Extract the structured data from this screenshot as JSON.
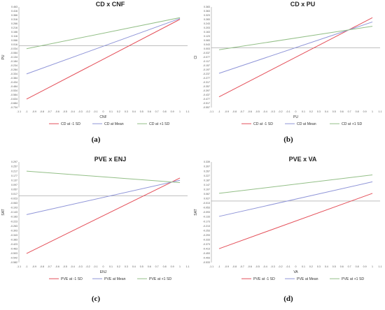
{
  "captions": [
    "(a)",
    "(b)",
    "(c)",
    "(d)"
  ],
  "colors": {
    "minus1sd": "#e4505a",
    "mean": "#8f95d8",
    "plus1sd": "#93bf87",
    "axis": "#999999"
  },
  "chart_data": [
    {
      "type": "line",
      "title": "CD x CNF",
      "xlabel": "CNF",
      "ylabel": "PU",
      "xlim": [
        -1.1,
        1.1
      ],
      "xticks": [
        "-1.1",
        "-1",
        "-0.9",
        "-0.8",
        "-0.7",
        "-0.6",
        "-0.5",
        "-0.4",
        "-0.3",
        "-0.2",
        "-0.1",
        "0",
        "0.1",
        "0.2",
        "0.3",
        "0.4",
        "0.5",
        "0.6",
        "0.7",
        "0.8",
        "0.9",
        "1",
        "1.1"
      ],
      "ylim": [
        -0.734,
        0.463
      ],
      "yticks": [
        "0.463",
        "0.416",
        "0.366",
        "0.316",
        "0.266",
        "0.216",
        "0.166",
        "0.116",
        "0.066",
        "0.016",
        "-0.034",
        "-0.084",
        "-0.134",
        "-0.184",
        "-0.234",
        "-0.284",
        "-0.334",
        "-0.384",
        "-0.434",
        "-0.484",
        "-0.534",
        "-0.584",
        "-0.634",
        "-0.684",
        "-0.734"
      ],
      "legend_position": "bottom",
      "series": [
        {
          "name": "CD at -1 SD",
          "x": [
            -1,
            1
          ],
          "y": [
            -0.634,
            0.316
          ]
        },
        {
          "name": "CD at Mean",
          "x": [
            -1,
            1
          ],
          "y": [
            -0.334,
            0.326
          ]
        },
        {
          "name": "CD at +1 SD",
          "x": [
            -1,
            1
          ],
          "y": [
            -0.034,
            0.336
          ]
        }
      ]
    },
    {
      "type": "line",
      "title": "CD x PU",
      "xlabel": "PU",
      "ylabel": "CI",
      "xlim": [
        -1.1,
        1.1
      ],
      "xticks": [
        "-1.1",
        "-1",
        "-0.9",
        "-0.8",
        "-0.7",
        "-0.6",
        "-0.5",
        "-0.4",
        "-0.3",
        "-0.2",
        "-0.1",
        "0",
        "0.1",
        "0.2",
        "0.3",
        "0.4",
        "0.5",
        "0.6",
        "0.7",
        "0.8",
        "0.9",
        "1",
        "1.1"
      ],
      "ylim": [
        -0.557,
        0.383
      ],
      "yticks": [
        "0.383",
        "0.363",
        "0.323",
        "0.283",
        "0.243",
        "0.203",
        "0.163",
        "0.123",
        "0.083",
        "0.043",
        "0.003",
        "-0.037",
        "-0.077",
        "-0.117",
        "-0.157",
        "-0.197",
        "-0.237",
        "-0.277",
        "-0.317",
        "-0.357",
        "-0.397",
        "-0.437",
        "-0.477",
        "-0.517",
        "-0.557"
      ],
      "legend_position": "bottom",
      "series": [
        {
          "name": "CD at -1 SD",
          "x": [
            -1,
            1
          ],
          "y": [
            -0.457,
            0.283
          ]
        },
        {
          "name": "CD at Mean",
          "x": [
            -1,
            1
          ],
          "y": [
            -0.237,
            0.243
          ]
        },
        {
          "name": "CD at +1 SD",
          "x": [
            -1,
            1
          ],
          "y": [
            -0.017,
            0.203
          ]
        }
      ]
    },
    {
      "type": "line",
      "title": "PVE x ENJ",
      "xlabel": "ENJ",
      "ylabel": "SAT",
      "xlim": [
        -1.1,
        1.1
      ],
      "xticks": [
        "-1.1",
        "-1",
        "-0.9",
        "-0.8",
        "-0.7",
        "-0.6",
        "-0.5",
        "-0.4",
        "-0.3",
        "-0.2",
        "-0.1",
        "0",
        "0.1",
        "0.2",
        "0.3",
        "0.4",
        "0.5",
        "0.6",
        "0.7",
        "0.8",
        "0.9",
        "1",
        "1.1"
      ],
      "ylim": [
        -0.582,
        0.297
      ],
      "yticks": [
        "0.297",
        "0.257",
        "0.217",
        "0.177",
        "0.137",
        "0.097",
        "0.057",
        "0.017",
        "-0.023",
        "-0.063",
        "-0.103",
        "-0.143",
        "-0.183",
        "-0.223",
        "-0.263",
        "-0.303",
        "-0.343",
        "-0.383",
        "-0.423",
        "-0.463",
        "-0.503",
        "-0.542",
        "-0.582"
      ],
      "legend_position": "bottom",
      "series": [
        {
          "name": "PVE at -1 SD",
          "x": [
            -1,
            1
          ],
          "y": [
            -0.503,
            0.157
          ]
        },
        {
          "name": "PVE at Mean",
          "x": [
            -1,
            1
          ],
          "y": [
            -0.163,
            0.137
          ]
        },
        {
          "name": "PVE at +1 SD",
          "x": [
            -1,
            1
          ],
          "y": [
            0.217,
            0.117
          ]
        }
      ]
    },
    {
      "type": "line",
      "title": "PVE x VA",
      "xlabel": "VA",
      "ylabel": "SAT",
      "xlim": [
        -1.1,
        1.1
      ],
      "xticks": [
        "-1.1",
        "-1",
        "-0.9",
        "-0.8",
        "-0.7",
        "-0.6",
        "-0.5",
        "-0.4",
        "-0.3",
        "-0.2",
        "-0.1",
        "0",
        "0.1",
        "0.2",
        "0.3",
        "0.4",
        "0.5",
        "0.6",
        "0.7",
        "0.8",
        "0.9",
        "1",
        "1.1"
      ],
      "ylim": [
        -0.533,
        0.339
      ],
      "yticks": [
        "0.339",
        "0.307",
        "0.267",
        "0.227",
        "0.187",
        "0.147",
        "0.107",
        "0.067",
        "0.027",
        "-0.013",
        "-0.053",
        "-0.093",
        "-0.133",
        "-0.173",
        "-0.213",
        "-0.253",
        "-0.293",
        "-0.333",
        "-0.373",
        "-0.413",
        "-0.453",
        "-0.493",
        "-0.533"
      ],
      "legend_position": "bottom",
      "series": [
        {
          "name": "PVE at -1 SD",
          "x": [
            -1,
            1
          ],
          "y": [
            -0.413,
            0.067
          ]
        },
        {
          "name": "PVE at Mean",
          "x": [
            -1,
            1
          ],
          "y": [
            -0.133,
            0.167
          ]
        },
        {
          "name": "PVE at +1 SD",
          "x": [
            -1,
            1
          ],
          "y": [
            0.067,
            0.227
          ]
        }
      ]
    }
  ]
}
